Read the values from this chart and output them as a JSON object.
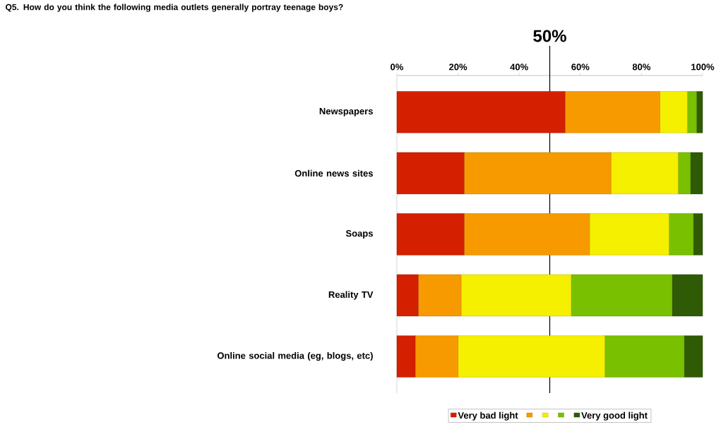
{
  "chart_data": {
    "type": "bar",
    "orientation": "horizontal",
    "stacked": true,
    "title": "Q5. How do you think the following media outlets generally portray teenage boys?",
    "categories": [
      "Newspapers",
      "Online news sites",
      "Soaps",
      "Reality TV",
      "Online social media (eg, blogs, etc)"
    ],
    "series": [
      {
        "name": "Very bad light",
        "color": "#d42000",
        "values": [
          55,
          22,
          22,
          7,
          6
        ]
      },
      {
        "color": "#f79a00",
        "values": [
          31,
          48,
          41,
          14,
          14
        ]
      },
      {
        "color": "#f5ef00",
        "values": [
          9,
          22,
          26,
          36,
          48
        ]
      },
      {
        "color": "#78c000",
        "values": [
          3,
          4,
          8,
          33,
          26
        ]
      },
      {
        "name": "Very good light",
        "color": "#2f5a06",
        "values": [
          2,
          4,
          3,
          10,
          6
        ]
      }
    ],
    "xlim": [
      0,
      100
    ],
    "xticks": [
      {
        "value": 0,
        "label": "0%"
      },
      {
        "value": 20,
        "label": "20%"
      },
      {
        "value": 40,
        "label": "40%"
      },
      {
        "value": 60,
        "label": "60%"
      },
      {
        "value": 80,
        "label": "80%"
      },
      {
        "value": 100,
        "label": "100%"
      }
    ],
    "ref_lines": [
      {
        "axis": "x",
        "value": 50,
        "label": "50%"
      }
    ],
    "legend": "bottom"
  }
}
